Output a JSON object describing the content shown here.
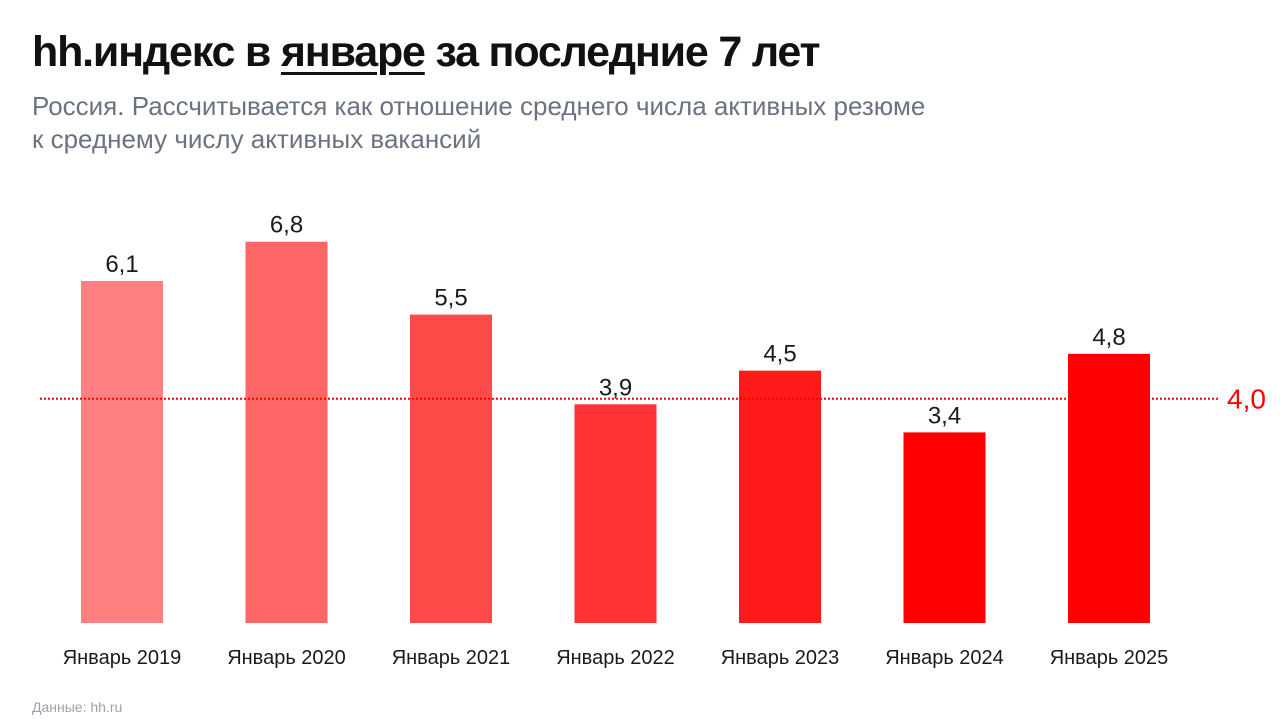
{
  "header": {
    "title_before": "hh.индекс в ",
    "title_underlined": "январе",
    "title_after": " за последние 7 лет",
    "subtitle_line1": "Россия. Рассчитывается как отношение среднего числа активных резюме",
    "subtitle_line2": "к среднему числу активных вакансий"
  },
  "footer": {
    "source": "Данные: hh.ru"
  },
  "chart_data": {
    "type": "bar",
    "title": "hh.индекс в январе за последние 7 лет",
    "xlabel": "",
    "ylabel": "",
    "ylim": [
      0,
      7
    ],
    "grid": false,
    "categories": [
      "Январь 2019",
      "Январь 2020",
      "Январь 2021",
      "Январь 2022",
      "Январь 2023",
      "Январь 2024",
      "Январь 2025"
    ],
    "values": [
      6.1,
      6.8,
      5.5,
      3.9,
      4.5,
      3.4,
      4.8
    ],
    "value_labels": [
      "6,1",
      "6,8",
      "5,5",
      "3,9",
      "4,5",
      "3,4",
      "4,8"
    ],
    "colors": [
      "#ff8080",
      "#ff6666",
      "#ff4a4a",
      "#ff3333",
      "#ff1a1a",
      "#ff0000",
      "#ff0000"
    ],
    "reference_line": {
      "value": 4.0,
      "label": "4,0",
      "color": "#ff0000",
      "style": "dotted"
    }
  }
}
